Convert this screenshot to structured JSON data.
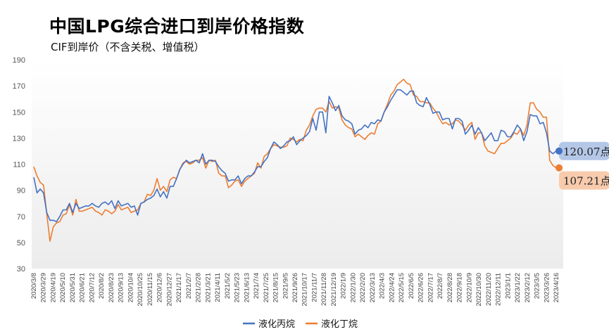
{
  "chart_data": {
    "type": "line",
    "title": "中国LPG综合进口到岸价格指数",
    "subtitle": "CIF到岸价（不含关税、增值税）",
    "ylim": [
      30,
      190
    ],
    "yticks": [
      30,
      50,
      70,
      90,
      110,
      130,
      150,
      170,
      190
    ],
    "grid": false,
    "legend_position": "bottom",
    "x_tick_labels": [
      "2020/3/8",
      "2020/3/29",
      "2020/4/19",
      "2020/5/10",
      "2020/5/31",
      "2020/6/21",
      "2020/7/12",
      "2020/8/2",
      "2020/8/23",
      "2020/9/13",
      "2020/10/4",
      "2020/10/25",
      "2020/11/15",
      "2020/12/6",
      "2020/12/27",
      "2021/1/17",
      "2021/2/7",
      "2021/2/28",
      "2021/3/21",
      "2021/4/11",
      "2021/5/2",
      "2021/5/23",
      "2021/6/13",
      "2021/7/4",
      "2021/7/25",
      "2021/8/15",
      "2021/9/5",
      "2021/9/26",
      "2021/10/17",
      "2021/11/7",
      "2021/11/28",
      "2021/12/19",
      "2022/1/9",
      "2022/1/30",
      "2022/2/20",
      "2022/3/13",
      "2022/4/3",
      "2022/4/24",
      "2022/5/15",
      "2022/6/5",
      "2022/6/26",
      "2022/7/17",
      "2022/8/7",
      "2022/8/28",
      "2022/9/18",
      "2022/10/9",
      "2022/10/30",
      "2022/11/20",
      "2022/12/11",
      "2023/1/1",
      "2023/1/22",
      "2023/2/12",
      "2023/3/5",
      "2023/3/26",
      "2023/4/16"
    ],
    "x_tick_labels_shown": [
      "2020/3/8",
      "2020/3/29",
      "2020/4/19",
      "2020/5/10",
      "2020/5/31",
      "2020/6/21",
      "2020/7/12",
      "2020/8/2",
      "2020/8/23",
      "2020/9/13",
      "2020/10/4",
      "2020/10/25",
      "2020/11/15",
      "2020/12/6",
      "2020/12/27",
      "2021/1/17",
      "2021/2/7",
      "2021/2/28",
      "2021/3/21",
      "2021/4/11",
      "2021/5/2",
      "2021/5/23",
      "2021/6/13",
      "2021/7/4",
      "2021/7/25",
      "2021/8/15",
      "2021/9/5",
      "2021/9/26",
      "2021/10/17",
      "2021/11/7",
      "2021/11/28",
      "2021/12/19",
      "2022/1/9",
      "2022/1/30",
      "2022/2/20",
      "2022/3/13",
      "2022/4/3",
      "2022/4/24",
      "2022/5/15",
      "2022/6/5",
      "2022/6/26",
      "2022/7/17",
      "2022/8/7",
      "2022/8/28",
      "2022/9/18",
      "2022/10/9",
      "2022/10/30",
      "2022/11/20",
      "2022/12/11",
      "2023/1/1",
      "2023/1/22",
      "2023/2/12",
      "2023/3/5",
      "2023/3/26",
      "2023/4/16"
    ],
    "series": [
      {
        "name": "液化丙烷",
        "color": "#4472C4",
        "values": [
          100,
          88,
          91,
          88,
          73,
          67,
          67,
          66,
          70,
          75,
          75,
          80,
          73,
          80,
          76,
          77,
          78,
          78,
          80,
          78,
          77,
          80,
          81,
          79,
          82,
          76,
          82,
          78,
          79,
          80,
          77,
          78,
          71,
          80,
          81,
          83,
          84,
          86,
          91,
          85,
          89,
          84,
          93,
          93,
          99,
          106,
          110,
          113,
          111,
          112,
          113,
          111,
          118,
          110,
          113,
          113,
          112,
          108,
          105,
          103,
          97,
          98,
          98,
          101,
          95,
          99,
          101,
          101,
          104,
          108,
          108,
          112,
          115,
          122,
          127,
          125,
          122,
          124,
          127,
          128,
          131,
          125,
          128,
          130,
          132,
          135,
          145,
          136,
          150,
          150,
          134,
          162,
          157,
          151,
          155,
          147,
          144,
          143,
          141,
          133,
          136,
          137,
          140,
          138,
          142,
          141,
          144,
          143,
          150,
          154,
          159,
          163,
          167,
          167,
          165,
          163,
          166,
          166,
          157,
          155,
          154,
          161,
          156,
          149,
          150,
          150,
          144,
          145,
          145,
          137,
          145,
          145,
          143,
          133,
          136,
          140,
          133,
          138,
          134,
          128,
          131,
          134,
          128,
          128,
          136,
          135,
          131,
          131,
          135,
          140,
          137,
          128,
          135,
          148,
          147,
          147,
          141,
          142,
          134,
          120,
          118,
          120.07
        ]
      },
      {
        "name": "液化丁烷",
        "color": "#ED7D31",
        "values": [
          108,
          101,
          96,
          94,
          72,
          51,
          62,
          65,
          66,
          71,
          72,
          79,
          71,
          83,
          74,
          74,
          75,
          76,
          77,
          74,
          73,
          71,
          75,
          74,
          72,
          74,
          79,
          75,
          76,
          77,
          73,
          74,
          75,
          80,
          81,
          87,
          86,
          90,
          99,
          90,
          93,
          89,
          98,
          100,
          99,
          106,
          111,
          112,
          110,
          111,
          113,
          113,
          115,
          107,
          113,
          112,
          113,
          103,
          101,
          101,
          92,
          94,
          97,
          98,
          93,
          97,
          99,
          101,
          103,
          111,
          107,
          116,
          118,
          122,
          125,
          124,
          123,
          123,
          124,
          130,
          129,
          127,
          129,
          128,
          136,
          140,
          147,
          152,
          153,
          153,
          150,
          158,
          153,
          154,
          153,
          144,
          140,
          138,
          137,
          131,
          133,
          131,
          129,
          132,
          134,
          133,
          141,
          143,
          150,
          156,
          163,
          166,
          171,
          173,
          175,
          172,
          171,
          163,
          162,
          158,
          158,
          157,
          157,
          153,
          150,
          145,
          141,
          142,
          140,
          141,
          144,
          143,
          140,
          136,
          140,
          142,
          129,
          134,
          134,
          124,
          120,
          119,
          118,
          122,
          126,
          126,
          128,
          130,
          134,
          133,
          137,
          132,
          140,
          157,
          157,
          152,
          150,
          146,
          146,
          113,
          109,
          107.21
        ]
      }
    ],
    "end_labels": [
      {
        "series": "液化丙烷",
        "text": "120.07点",
        "value": 120.07,
        "bg": "#B4C7E7",
        "dot": "#4472C4"
      },
      {
        "series": "液化丁烷",
        "text": "107.21点",
        "value": 107.21,
        "bg": "#F8CBAD",
        "dot": "#ED7D31"
      }
    ]
  }
}
